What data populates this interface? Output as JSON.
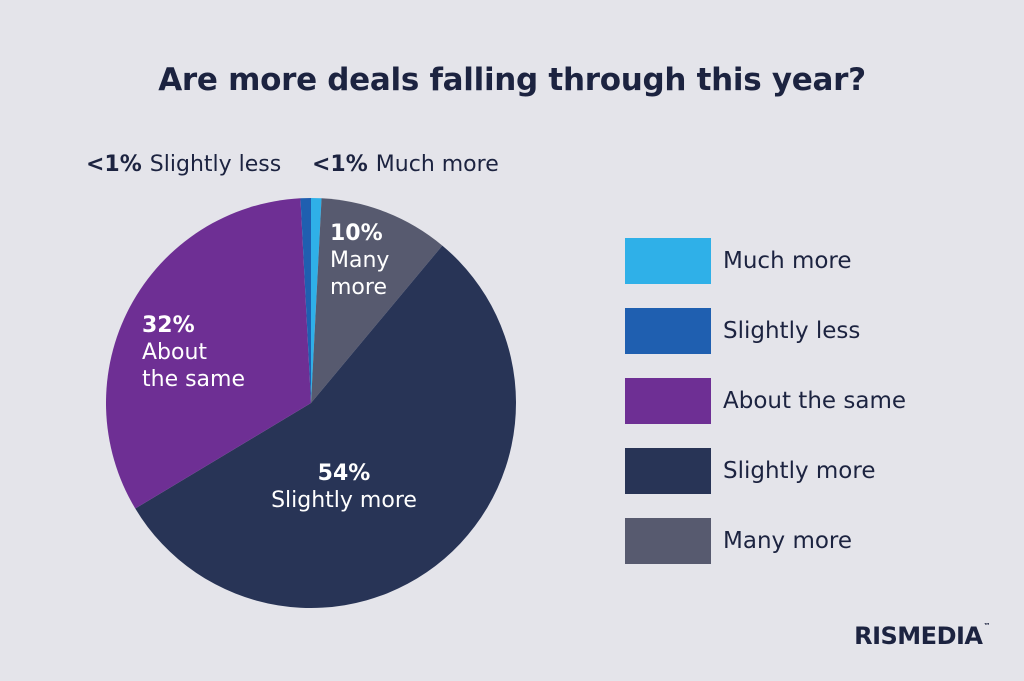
{
  "chart_data": {
    "type": "pie",
    "title": "Are more deals falling through this year?",
    "slices": [
      {
        "name": "Much more",
        "value": 0.8,
        "value_label": "<1%",
        "color": "#2fb0e8"
      },
      {
        "name": "Many more",
        "value": 10,
        "value_label": "10%",
        "color": "#575a6f"
      },
      {
        "name": "Slightly more",
        "value": 54,
        "value_label": "54%",
        "color": "#283456"
      },
      {
        "name": "About the same",
        "value": 32,
        "value_label": "32%",
        "color": "#6e2f94"
      },
      {
        "name": "Slightly less",
        "value": 0.8,
        "value_label": "<1%",
        "color": "#1f5fb0"
      }
    ],
    "slice_labels": {
      "much_more": {
        "pct": "<1%",
        "text": "Much more"
      },
      "slightly_less": {
        "pct": "<1%",
        "text": "Slightly less"
      },
      "many_more": {
        "pct": "10%",
        "line1": "Many",
        "line2": "more"
      },
      "about_same": {
        "pct": "32%",
        "line1": "About",
        "line2": "the same"
      },
      "slightly_more": {
        "pct": "54%",
        "text": "Slightly more"
      }
    },
    "legend": [
      {
        "label": "Much more",
        "color": "#2fb0e8"
      },
      {
        "label": "Slightly less",
        "color": "#1f5fb0"
      },
      {
        "label": "About the same",
        "color": "#6e2f94"
      },
      {
        "label": "Slightly more",
        "color": "#283456"
      },
      {
        "label": "Many more",
        "color": "#575a6f"
      }
    ],
    "legend_position": "right"
  },
  "brand": {
    "logo_text": "RISMEDIA",
    "trademark": "™"
  }
}
